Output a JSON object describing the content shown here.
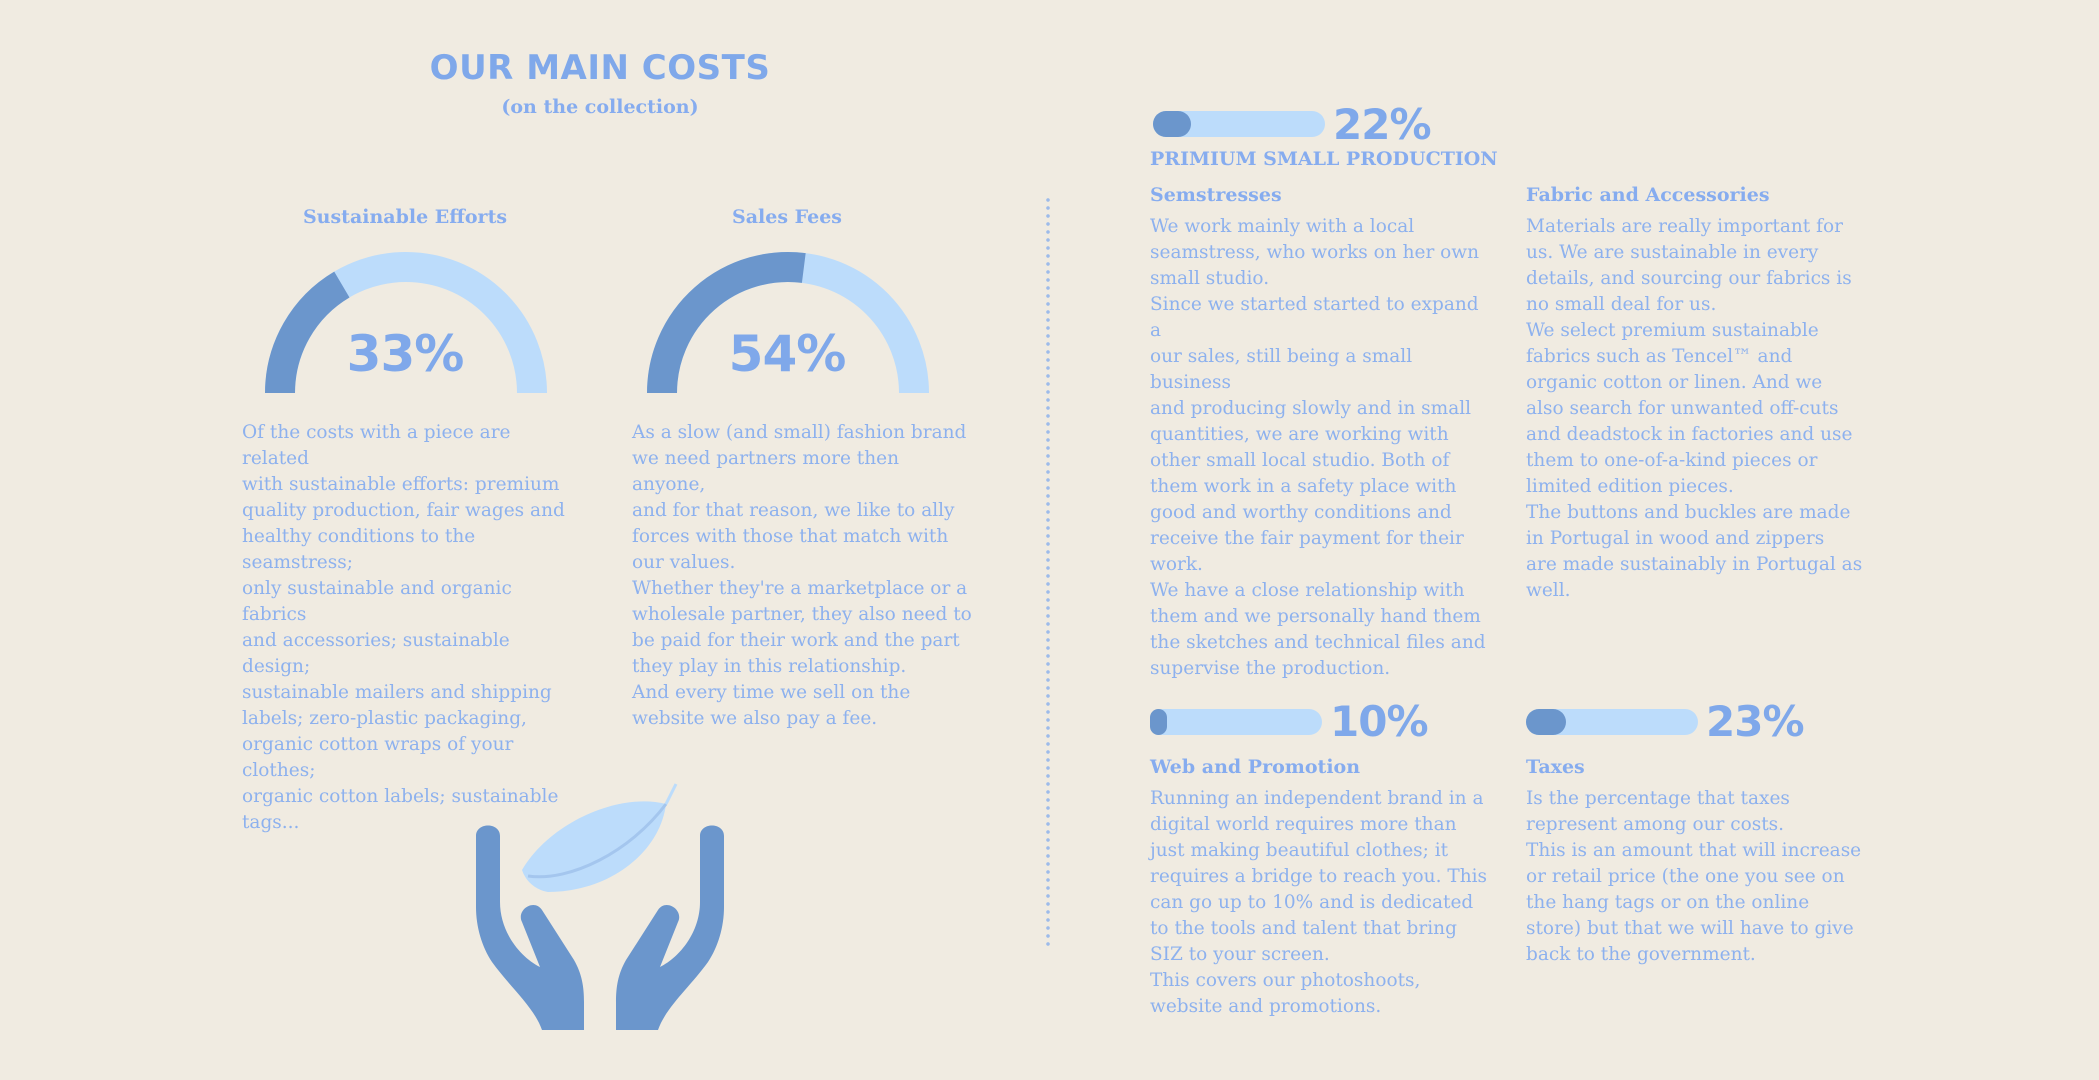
{
  "header": {
    "title": "OUR MAIN COSTS",
    "subtitle": "(on the collection)"
  },
  "colors": {
    "background": "#f0ebe1",
    "text": "#86acef",
    "dark_blue": "#6b96cc",
    "light_blue": "#bcdcfb"
  },
  "gauges": [
    {
      "title": "Sustainable Efforts",
      "percent_label": "33%",
      "value": 33,
      "text": "Of the costs with a piece are related\nwith sustainable efforts: premium\nquality production, fair wages and\nhealthy conditions to the seamstress;\nonly sustainable and organic fabrics\nand accessories; sustainable design;\nsustainable mailers and shipping\nlabels; zero-plastic packaging,\norganic cotton wraps of your clothes;\norganic cotton labels; sustainable\ntags..."
    },
    {
      "title": "Sales Fees",
      "percent_label": "54%",
      "value": 54,
      "text": "As a slow (and small) fashion brand\nwe need partners more then anyone,\nand for that reason, we like to ally\nforces with those that match with\nour values.\nWhether they're a marketplace or a\nwholesale partner, they also need to\nbe paid for their work and the part\nthey play in this relationship.\nAnd every time we sell on the\nwebsite we also pay a fee."
    }
  ],
  "premium": {
    "percent_label": "22%",
    "value": 22,
    "label": "PRIMIUM SMALL PRODUCTION",
    "semstresses": {
      "title": "Semstresses",
      "text": "We work mainly with a local\nseamstress,  who works on her own\nsmall studio.\nSince we started started to expand a\nour sales, still being a small business\nand producing slowly and in small\nquantities, we are working with\nother small local studio. Both of\nthem work in a safety place with\ngood and worthy conditions  and\nreceive the fair payment for their\nwork.\nWe have a close relationship with\nthem and we personally hand them\nthe sketches and technical files and\nsupervise the production."
    },
    "fabric": {
      "title": "Fabric and Accessories",
      "text": "Materials are really important for\nus. We are sustainable in every\ndetails, and sourcing our fabrics is\nno small deal for us.\nWe select premium sustainable\nfabrics such as Tencel™ and\norganic cotton or linen. And we\nalso search for unwanted off-cuts\nand deadstock in factories and use\nthem to one-of-a-kind pieces or\nlimited edition pieces.\nThe buttons and buckles are made\nin Portugal in wood and zippers\nare made sustainably in Portugal as\nwell."
    }
  },
  "web": {
    "percent_label": "10%",
    "value": 10,
    "title": "Web and Promotion",
    "text": "Running an independent brand in a\ndigital world requires more than\njust making beautiful clothes; it\nrequires a bridge to reach you. This\ncan go up to 10% and is dedicated\nto the tools and talent that bring\nSIZ to your screen.\nThis covers our photoshoots,\nwebsite and promotions."
  },
  "taxes": {
    "percent_label": "23%",
    "value": 23,
    "title": "Taxes",
    "text": "Is the percentage that taxes\nrepresent among our costs.\nThis is an amount that will increase\nor retail price (the one you see on\nthe hang tags or on the online\nstore) but that we will have to give\nback to the government."
  },
  "illustration": {
    "icon": "hands-holding-leaf-icon"
  }
}
